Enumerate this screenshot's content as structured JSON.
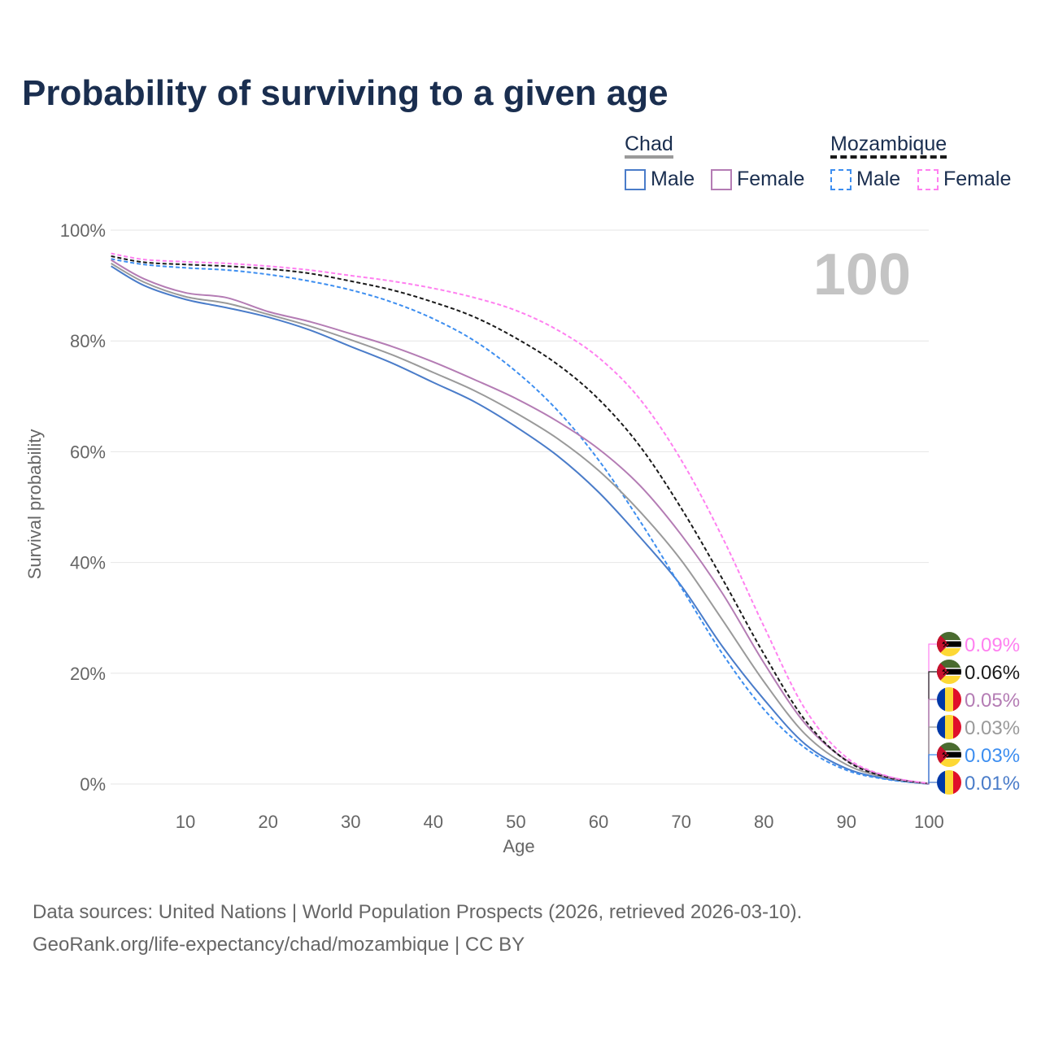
{
  "title": "Probability of surviving to a given age",
  "legend": {
    "groups": [
      {
        "country": "Chad",
        "male": "Male",
        "female": "Female"
      },
      {
        "country": "Mozambique",
        "male": "Male",
        "female": "Female"
      }
    ]
  },
  "year_label": "100",
  "footer": {
    "line1": "Data sources: United Nations | World Population Prospects (2026, retrieved 2026-03-10).",
    "line2": "GeoRank.org/life-expectancy/chad/mozambique | CC BY"
  },
  "chart_data": {
    "type": "line",
    "title": "Probability of surviving to a given age",
    "xlabel": "Age",
    "ylabel": "Survival probability",
    "xlim": [
      0,
      100
    ],
    "ylim": [
      0,
      100
    ],
    "xticks": [
      "10",
      "20",
      "30",
      "40",
      "50",
      "60",
      "70",
      "80",
      "90",
      "100"
    ],
    "yticks": [
      "0%",
      "20%",
      "40%",
      "60%",
      "80%",
      "100%"
    ],
    "grid": true,
    "x": [
      1,
      5,
      10,
      15,
      20,
      25,
      30,
      35,
      40,
      45,
      50,
      55,
      60,
      65,
      70,
      75,
      80,
      85,
      90,
      95,
      100
    ],
    "series": [
      {
        "name": "Mozambique Female",
        "color": "#ff80f0",
        "dash": true,
        "flag": "mozambique",
        "end_label": "0.09%",
        "values": [
          95.8,
          94.7,
          94.3,
          94,
          93.5,
          92.8,
          91.8,
          90.8,
          89.5,
          87.8,
          85.5,
          82,
          77,
          69.5,
          58.5,
          44.5,
          28.5,
          13.5,
          4.8,
          1.4,
          0.09
        ]
      },
      {
        "name": "Mozambique",
        "color": "#1a1a1a",
        "dash": true,
        "flag": "mozambique",
        "end_label": "0.06%",
        "values": [
          95.3,
          94.2,
          93.8,
          93.5,
          93,
          92.2,
          90.8,
          89.2,
          87,
          84.3,
          80.5,
          75.8,
          69.5,
          61,
          49.8,
          37,
          23.5,
          11.5,
          4.2,
          1.2,
          0.06
        ]
      },
      {
        "name": "Chad Female",
        "color": "#b47cb4",
        "dash": false,
        "flag": "chad",
        "end_label": "0.05%",
        "values": [
          94.6,
          91.2,
          88.7,
          87.8,
          85.3,
          83.5,
          81.3,
          79,
          76.2,
          73,
          69.6,
          65.5,
          60.5,
          53.9,
          45,
          34.4,
          21.9,
          10.9,
          4.3,
          1.3,
          0.05
        ]
      },
      {
        "name": "Chad",
        "color": "#9a9a9a",
        "dash": false,
        "flag": "chad",
        "end_label": "0.03%",
        "values": [
          94,
          90.6,
          88,
          86.8,
          84.8,
          82.7,
          80.2,
          77.5,
          74.3,
          71,
          67,
          62.4,
          56.6,
          49.2,
          40.4,
          29.6,
          18.5,
          9,
          3.5,
          1.1,
          0.03
        ]
      },
      {
        "name": "Mozambique Male",
        "color": "#3d8ef0",
        "dash": true,
        "flag": "mozambique",
        "end_label": "0.03%",
        "values": [
          94.8,
          93.8,
          93.2,
          92.8,
          92,
          90.8,
          89.2,
          87,
          84,
          80,
          74.5,
          67.5,
          58.5,
          47.5,
          35.5,
          23.5,
          13.5,
          6.5,
          2.5,
          0.8,
          0.03
        ]
      },
      {
        "name": "Chad Male",
        "color": "#4a7cc9",
        "dash": false,
        "flag": "chad",
        "end_label": "0.01%",
        "values": [
          93.5,
          90,
          87.5,
          86,
          84.3,
          82,
          79,
          76,
          72.5,
          69,
          64.5,
          59.3,
          52.7,
          44.6,
          35.8,
          24.8,
          15.3,
          7.2,
          2.8,
          0.9,
          0.01
        ]
      }
    ]
  }
}
